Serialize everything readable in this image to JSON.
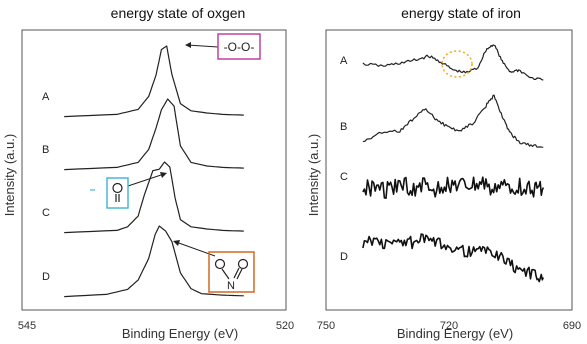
{
  "chart_data": [
    {
      "type": "line",
      "title": "energy state of oxgen",
      "xlabel": "Binding Energy (eV)",
      "ylabel": "Intensity (a.u.)",
      "xlim": [
        545,
        520
      ],
      "x_ticks": [
        "545",
        "520"
      ],
      "series": [
        {
          "name": "A",
          "x": [
            541,
            536,
            534,
            533,
            532.3,
            531.8,
            531.3,
            530.8,
            530,
            529,
            527.5,
            526,
            524
          ],
          "y": [
            0.02,
            0.05,
            0.12,
            0.3,
            0.6,
            0.95,
            1.0,
            0.6,
            0.2,
            0.1,
            0.07,
            0.05,
            0.04
          ]
        },
        {
          "name": "B",
          "x": [
            541,
            536,
            534,
            533,
            532.3,
            531.8,
            531.2,
            530.6,
            530,
            529,
            527.5,
            526,
            524
          ],
          "y": [
            0.02,
            0.05,
            0.12,
            0.3,
            0.6,
            0.85,
            1.0,
            0.9,
            0.35,
            0.12,
            0.07,
            0.05,
            0.04
          ]
        },
        {
          "name": "C",
          "x": [
            541,
            536,
            535,
            534,
            533.4,
            532.6,
            532,
            531.5,
            531,
            530.5,
            530,
            529,
            527.5,
            526,
            524
          ],
          "y": [
            0.02,
            0.05,
            0.1,
            0.25,
            0.55,
            0.88,
            0.9,
            1.0,
            0.93,
            0.5,
            0.2,
            0.1,
            0.07,
            0.05,
            0.04
          ]
        },
        {
          "name": "D",
          "x": [
            541,
            537,
            535,
            534,
            533,
            532.4,
            532,
            531.4,
            530.8,
            530,
            529,
            528,
            526,
            524
          ],
          "y": [
            0.02,
            0.05,
            0.12,
            0.25,
            0.55,
            0.88,
            1.0,
            0.93,
            0.78,
            0.35,
            0.13,
            0.06,
            0.04,
            0.03
          ]
        }
      ],
      "annotations": [
        {
          "text": "-O-O-",
          "border_color": "#c040a0",
          "series": "A"
        },
        {
          "text": "O\n||",
          "border_color": "#4ab8d0",
          "series": "C"
        },
        {
          "text": "O   O\n\\ //\nN",
          "border_color": "#d06a20",
          "series": "D"
        }
      ]
    },
    {
      "type": "line",
      "title": "energy state of iron",
      "xlabel": "Binding Energy (eV)",
      "ylabel": "Intensity (a.u.)",
      "xlim": [
        750,
        690
      ],
      "x_ticks": [
        "750",
        "720",
        "690"
      ],
      "series": [
        {
          "name": "A",
          "x": [
            741,
            736,
            732,
            728,
            725,
            722,
            719,
            716,
            713,
            711,
            709,
            707,
            705,
            703,
            700,
            697
          ],
          "y": [
            0.5,
            0.45,
            0.52,
            0.6,
            0.7,
            0.55,
            0.35,
            0.28,
            0.4,
            0.85,
            1.0,
            0.55,
            0.3,
            0.35,
            0.15,
            0.1
          ]
        },
        {
          "name": "B",
          "x": [
            741,
            737,
            732,
            729,
            726,
            723,
            720,
            717,
            714,
            711,
            709,
            707,
            705,
            703,
            700,
            697
          ],
          "y": [
            0.15,
            0.3,
            0.35,
            0.55,
            0.75,
            0.55,
            0.4,
            0.35,
            0.5,
            0.8,
            1.0,
            0.6,
            0.3,
            0.15,
            0.08,
            0.05
          ]
        },
        {
          "name": "C",
          "x": [
            741,
            738,
            735,
            732,
            729,
            726,
            723,
            720,
            717,
            714,
            711,
            708,
            705,
            702,
            699,
            697
          ],
          "y": [
            0.45,
            0.55,
            0.4,
            0.6,
            0.5,
            0.55,
            0.45,
            0.6,
            0.5,
            0.55,
            0.6,
            0.45,
            0.5,
            0.55,
            0.45,
            0.5
          ]
        },
        {
          "name": "D",
          "x": [
            741,
            738,
            735,
            732,
            729,
            726,
            723,
            720,
            717,
            714,
            711,
            708,
            705,
            702,
            699,
            697
          ],
          "y": [
            0.75,
            0.8,
            0.7,
            0.78,
            0.75,
            0.82,
            0.72,
            0.7,
            0.6,
            0.55,
            0.6,
            0.5,
            0.3,
            0.2,
            0.1,
            0.05
          ]
        }
      ],
      "annotations": [
        {
          "shape": "dotted-circle",
          "color": "#f0b020",
          "series": "A",
          "x": 719
        }
      ]
    }
  ]
}
